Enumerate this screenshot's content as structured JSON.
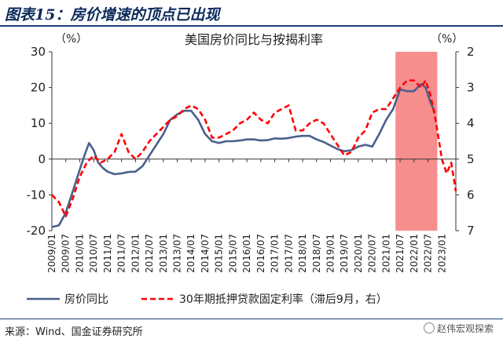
{
  "header": {
    "title": "图表15：房价增速的顶点已出现"
  },
  "source": {
    "text": "来源：Wind、国金证券研究所"
  },
  "watermark": {
    "text": "赵伟宏观探索"
  },
  "colors": {
    "house": "#4a5f8c",
    "mortgage": "#ff0000",
    "highlight": "#f47a7a",
    "title_bar": "#1d3f7a"
  },
  "chart_data": {
    "type": "line",
    "title": "美国房价同比与按揭利率",
    "left_unit": "（%）",
    "right_unit": "（%）",
    "y_left": {
      "lim": [
        -20,
        30
      ],
      "ticks": [
        30,
        20,
        10,
        0,
        -10,
        -20
      ]
    },
    "y_right": {
      "lim": [
        2,
        7
      ],
      "inverted": true,
      "ticks": [
        2,
        3,
        4,
        5,
        6,
        7
      ]
    },
    "x_ticks": [
      "2009/01",
      "2009/07",
      "2010/01",
      "2010/07",
      "2011/01",
      "2011/07",
      "2012/01",
      "2012/07",
      "2013/01",
      "2013/07",
      "2014/01",
      "2014/07",
      "2015/01",
      "2015/07",
      "2016/01",
      "2016/07",
      "2017/01",
      "2017/07",
      "2018/01",
      "2018/07",
      "2019/01",
      "2019/07",
      "2020/01",
      "2020/07",
      "2021/01",
      "2021/07",
      "2022/01",
      "2022/07",
      "2023/01"
    ],
    "highlight": {
      "from": "2021/05",
      "to": "2022/11"
    },
    "series": [
      {
        "name": "房价同比",
        "axis": "left",
        "style": "solid",
        "points": [
          [
            "2009/01",
            -19
          ],
          [
            "2009/04",
            -18.5
          ],
          [
            "2009/07",
            -15
          ],
          [
            "2009/10",
            -9
          ],
          [
            "2010/01",
            -3
          ],
          [
            "2010/03",
            1
          ],
          [
            "2010/05",
            4.5
          ],
          [
            "2010/07",
            2.5
          ],
          [
            "2010/09",
            -1
          ],
          [
            "2010/11",
            -2.5
          ],
          [
            "2011/01",
            -3.5
          ],
          [
            "2011/04",
            -4.2
          ],
          [
            "2011/07",
            -4
          ],
          [
            "2011/10",
            -3.6
          ],
          [
            "2012/01",
            -3.5
          ],
          [
            "2012/04",
            -2
          ],
          [
            "2012/07",
            1
          ],
          [
            "2012/10",
            4
          ],
          [
            "2013/01",
            7
          ],
          [
            "2013/04",
            11
          ],
          [
            "2013/07",
            12.5
          ],
          [
            "2013/10",
            13.5
          ],
          [
            "2014/01",
            13.5
          ],
          [
            "2014/04",
            11
          ],
          [
            "2014/07",
            7
          ],
          [
            "2014/10",
            5
          ],
          [
            "2015/01",
            4.5
          ],
          [
            "2015/04",
            5
          ],
          [
            "2015/07",
            5
          ],
          [
            "2015/10",
            5.2
          ],
          [
            "2016/01",
            5.5
          ],
          [
            "2016/04",
            5.5
          ],
          [
            "2016/07",
            5.2
          ],
          [
            "2016/10",
            5.3
          ],
          [
            "2017/01",
            5.8
          ],
          [
            "2017/04",
            5.7
          ],
          [
            "2017/07",
            5.9
          ],
          [
            "2017/10",
            6.3
          ],
          [
            "2018/01",
            6.5
          ],
          [
            "2018/04",
            6.5
          ],
          [
            "2018/07",
            5.5
          ],
          [
            "2018/10",
            4.8
          ],
          [
            "2019/01",
            3.8
          ],
          [
            "2019/04",
            2.8
          ],
          [
            "2019/07",
            2.2
          ],
          [
            "2019/10",
            2.5
          ],
          [
            "2020/01",
            3.5
          ],
          [
            "2020/04",
            4
          ],
          [
            "2020/07",
            3.5
          ],
          [
            "2020/10",
            7
          ],
          [
            "2021/01",
            11
          ],
          [
            "2021/04",
            14
          ],
          [
            "2021/07",
            19.5
          ],
          [
            "2021/10",
            19
          ],
          [
            "2022/01",
            19
          ],
          [
            "2022/04",
            21
          ],
          [
            "2022/06",
            20
          ],
          [
            "2022/08",
            16
          ],
          [
            "2022/10",
            13
          ]
        ]
      },
      {
        "name": "30年期抵押贷款固定利率（滞后9月，右）",
        "axis": "right",
        "style": "dashed",
        "points": [
          [
            "2009/01",
            6
          ],
          [
            "2009/04",
            6.2
          ],
          [
            "2009/07",
            6.6
          ],
          [
            "2009/10",
            6.1
          ],
          [
            "2010/01",
            5.5
          ],
          [
            "2010/04",
            5.1
          ],
          [
            "2010/07",
            4.9
          ],
          [
            "2010/10",
            5.1
          ],
          [
            "2011/01",
            5
          ],
          [
            "2011/04",
            4.8
          ],
          [
            "2011/07",
            4.3
          ],
          [
            "2011/10",
            4.8
          ],
          [
            "2012/01",
            5
          ],
          [
            "2012/04",
            4.8
          ],
          [
            "2012/07",
            4.5
          ],
          [
            "2012/10",
            4.3
          ],
          [
            "2013/01",
            4.1
          ],
          [
            "2013/04",
            3.9
          ],
          [
            "2013/07",
            3.8
          ],
          [
            "2013/10",
            3.6
          ],
          [
            "2014/01",
            3.5
          ],
          [
            "2014/04",
            3.6
          ],
          [
            "2014/07",
            3.9
          ],
          [
            "2014/10",
            4.4
          ],
          [
            "2015/01",
            4.4
          ],
          [
            "2015/04",
            4.3
          ],
          [
            "2015/07",
            4.2
          ],
          [
            "2015/10",
            4.0
          ],
          [
            "2016/01",
            3.9
          ],
          [
            "2016/04",
            3.7
          ],
          [
            "2016/07",
            3.9
          ],
          [
            "2016/10",
            4.0
          ],
          [
            "2017/01",
            3.7
          ],
          [
            "2017/04",
            3.6
          ],
          [
            "2017/07",
            3.5
          ],
          [
            "2017/10",
            4.2
          ],
          [
            "2018/01",
            4.2
          ],
          [
            "2018/04",
            4.0
          ],
          [
            "2018/07",
            3.9
          ],
          [
            "2018/10",
            4.0
          ],
          [
            "2019/01",
            4.3
          ],
          [
            "2019/04",
            4.6
          ],
          [
            "2019/07",
            4.9
          ],
          [
            "2019/10",
            4.8
          ],
          [
            "2020/01",
            4.4
          ],
          [
            "2020/04",
            4.2
          ],
          [
            "2020/07",
            3.7
          ],
          [
            "2020/10",
            3.6
          ],
          [
            "2021/01",
            3.6
          ],
          [
            "2021/04",
            3.3
          ],
          [
            "2021/07",
            3.0
          ],
          [
            "2021/10",
            2.8
          ],
          [
            "2022/01",
            2.8
          ],
          [
            "2022/04",
            3.0
          ],
          [
            "2022/06",
            2.8
          ],
          [
            "2022/08",
            3.2
          ],
          [
            "2022/10",
            3.8
          ],
          [
            "2023/01",
            5.0
          ],
          [
            "2023/03",
            5.4
          ],
          [
            "2023/05",
            5.1
          ],
          [
            "2023/07",
            5.9
          ]
        ]
      }
    ]
  }
}
